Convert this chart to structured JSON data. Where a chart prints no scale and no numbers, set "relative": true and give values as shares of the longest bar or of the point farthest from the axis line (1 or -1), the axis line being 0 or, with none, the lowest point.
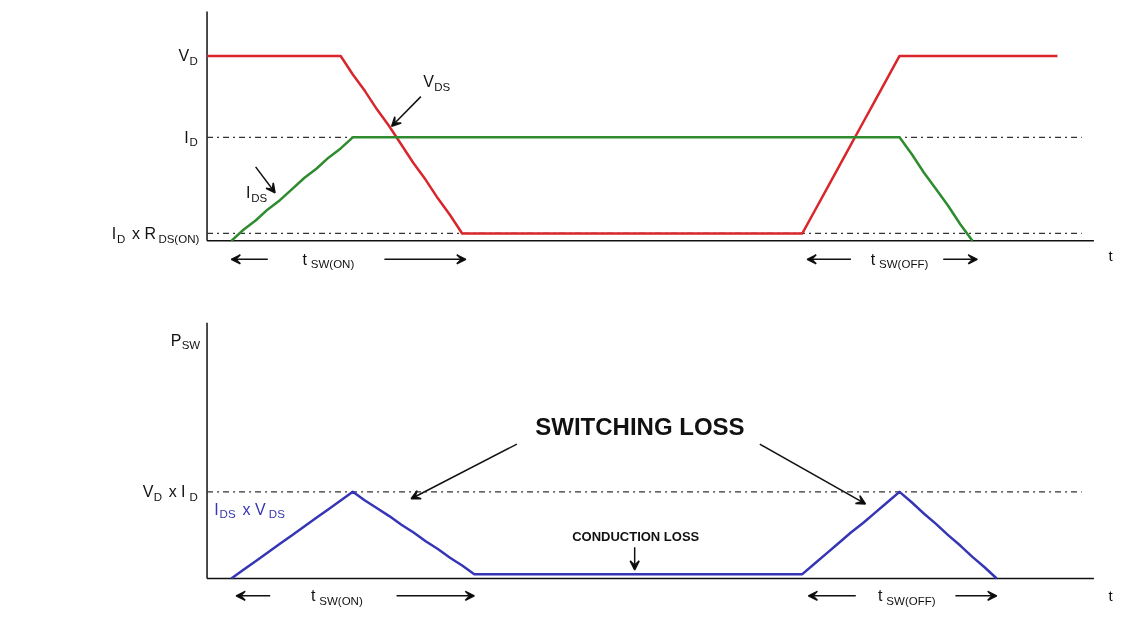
{
  "chart_data": [
    {
      "type": "line",
      "relative": true,
      "tick_labels": false,
      "xlabel": "t",
      "categories": [
        null,
        null,
        null,
        null,
        null,
        null,
        null,
        null,
        null,
        null,
        null,
        null,
        null,
        null,
        null,
        null,
        null,
        null,
        null,
        null,
        null,
        null,
        null,
        null,
        null,
        null,
        null,
        null,
        null,
        null,
        null,
        null,
        null,
        null,
        null,
        null,
        null,
        null,
        null,
        null,
        null,
        null,
        null,
        null,
        null,
        null,
        null,
        null,
        null,
        null,
        null,
        null,
        null,
        null,
        null,
        null,
        null,
        null,
        null,
        null,
        null,
        null,
        null,
        null,
        null,
        null,
        null,
        null,
        null,
        null,
        null,
        null,
        null
      ],
      "series": [
        {
          "name": "V$_{DS}$",
          "color": "#d9262b",
          "values": [
            1,
            1,
            1,
            1,
            1,
            1,
            1,
            1,
            1,
            1,
            1,
            1,
            0.9,
            0.81,
            0.71,
            0.62,
            0.52,
            0.42,
            0.33,
            0.23,
            0.14,
            0.04,
            0.04,
            0.04,
            0.04,
            0.04,
            0.04,
            0.04,
            0.04,
            0.04,
            0.04,
            0.04,
            0.04,
            0.04,
            0.04,
            0.04,
            0.04,
            0.04,
            0.04,
            0.04,
            0.04,
            0.04,
            0.04,
            0.04,
            0.04,
            0.04,
            0.04,
            0.04,
            0.04,
            0.04,
            0.16,
            0.28,
            0.4,
            0.52,
            0.64,
            0.76,
            0.88,
            1,
            1,
            1,
            1,
            1,
            1,
            1,
            1,
            1,
            1,
            1,
            1,
            1,
            1,
            null,
            null
          ]
        },
        {
          "name": "I$_{DS}$",
          "color": "#2e8b2e",
          "values": [
            null,
            null,
            0,
            0.06,
            0.11,
            0.17,
            0.22,
            0.28,
            0.34,
            0.39,
            0.45,
            0.5,
            0.56,
            0.56,
            0.56,
            0.56,
            0.56,
            0.56,
            0.56,
            0.56,
            0.56,
            0.56,
            0.56,
            0.56,
            0.56,
            0.56,
            0.56,
            0.56,
            0.56,
            0.56,
            0.56,
            0.56,
            0.56,
            0.56,
            0.56,
            0.56,
            0.56,
            0.56,
            0.56,
            0.56,
            0.56,
            0.56,
            0.56,
            0.56,
            0.56,
            0.56,
            0.56,
            0.56,
            0.56,
            0.56,
            0.56,
            0.56,
            0.56,
            0.56,
            0.56,
            0.56,
            0.56,
            0.56,
            0.47,
            0.37,
            0.28,
            0.19,
            0.09,
            0,
            null,
            null,
            null,
            null,
            null,
            null,
            null,
            null,
            null
          ]
        }
      ],
      "ref_lines": [
        {
          "axis": "y",
          "value": 0.56,
          "label": "I$_{D}$",
          "line_style": "dashdot",
          "color": "#333333"
        },
        {
          "axis": "y",
          "value": 0.04,
          "label": "I$_{D}$ x R$_{DS(ON)}$",
          "line_style": "dashdot",
          "color": "#333333"
        }
      ],
      "annotations": [
        "V$_{D}$",
        "t$_{SW(ON)}$",
        "t$_{SW(OFF)}$"
      ]
    },
    {
      "type": "line",
      "relative": true,
      "tick_labels": false,
      "xlabel": "t",
      "ylabel": "P$_{SW}$",
      "categories": [
        null,
        null,
        null,
        null,
        null,
        null,
        null,
        null,
        null,
        null,
        null,
        null,
        null,
        null,
        null,
        null,
        null,
        null,
        null,
        null,
        null,
        null,
        null,
        null,
        null,
        null,
        null,
        null,
        null,
        null,
        null,
        null,
        null,
        null,
        null,
        null,
        null,
        null,
        null,
        null,
        null,
        null,
        null,
        null,
        null,
        null,
        null,
        null,
        null,
        null,
        null,
        null,
        null,
        null,
        null,
        null,
        null,
        null,
        null,
        null,
        null,
        null,
        null,
        null,
        null,
        null,
        null,
        null,
        null,
        null,
        null,
        null,
        null
      ],
      "series": [
        {
          "name": "I$_{DS}$ x V$_{DS}$",
          "color": "#3535b5",
          "values": [
            null,
            null,
            0,
            0.1,
            0.2,
            0.3,
            0.4,
            0.5,
            0.6,
            0.7,
            0.8,
            0.9,
            1,
            0.9,
            0.81,
            0.72,
            0.62,
            0.53,
            0.43,
            0.34,
            0.24,
            0.15,
            0.05,
            0.05,
            0.05,
            0.05,
            0.05,
            0.05,
            0.05,
            0.05,
            0.05,
            0.05,
            0.05,
            0.05,
            0.05,
            0.05,
            0.05,
            0.05,
            0.05,
            0.05,
            0.05,
            0.05,
            0.05,
            0.05,
            0.05,
            0.05,
            0.05,
            0.05,
            0.05,
            0.05,
            0.17,
            0.29,
            0.41,
            0.53,
            0.64,
            0.76,
            0.88,
            1,
            0.88,
            0.75,
            0.63,
            0.5,
            0.38,
            0.25,
            0.13,
            0,
            null,
            null,
            null,
            null,
            null,
            null,
            null
          ]
        }
      ],
      "ref_lines": [
        {
          "axis": "y",
          "value": 1,
          "label": "V$_{D}$ x I$_{D}$",
          "line_style": "dashdot",
          "color": "#333333"
        }
      ],
      "annotations": [
        "SWITCHING LOSS",
        "CONDUCTION LOSS",
        "t$_{SW(ON)}$",
        "t$_{SW(OFF)}$"
      ]
    }
  ]
}
